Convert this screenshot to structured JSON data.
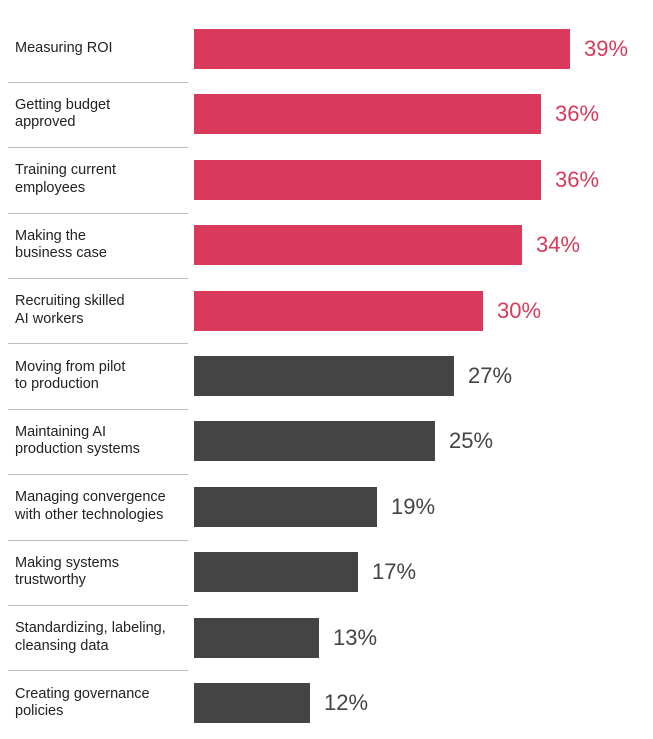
{
  "chart_data": {
    "type": "bar",
    "orientation": "horizontal",
    "title": "",
    "xlabel": "",
    "ylabel": "",
    "xlim": [
      0,
      39
    ],
    "value_suffix": "%",
    "highlight_count": 5,
    "colors": {
      "highlight": "#d9395a",
      "default": "#444444"
    },
    "categories": [
      [
        "Measuring ROI"
      ],
      [
        "Getting budget",
        "approved"
      ],
      [
        "Training current",
        "employees"
      ],
      [
        "Making the",
        "business case"
      ],
      [
        "Recruiting skilled",
        "AI workers"
      ],
      [
        "Moving from pilot",
        "to production"
      ],
      [
        "Maintaining AI",
        "production systems"
      ],
      [
        "Managing convergence",
        "with other technologies"
      ],
      [
        "Making systems",
        "trustworthy"
      ],
      [
        "Standardizing, labeling,",
        "cleansing data"
      ],
      [
        "Creating governance",
        "policies"
      ]
    ],
    "values": [
      39,
      36,
      36,
      34,
      30,
      27,
      25,
      19,
      17,
      13,
      12
    ],
    "value_labels": [
      "39%",
      "36%",
      "36%",
      "34%",
      "30%",
      "27%",
      "25%",
      "19%",
      "17%",
      "13%",
      "12%"
    ]
  }
}
